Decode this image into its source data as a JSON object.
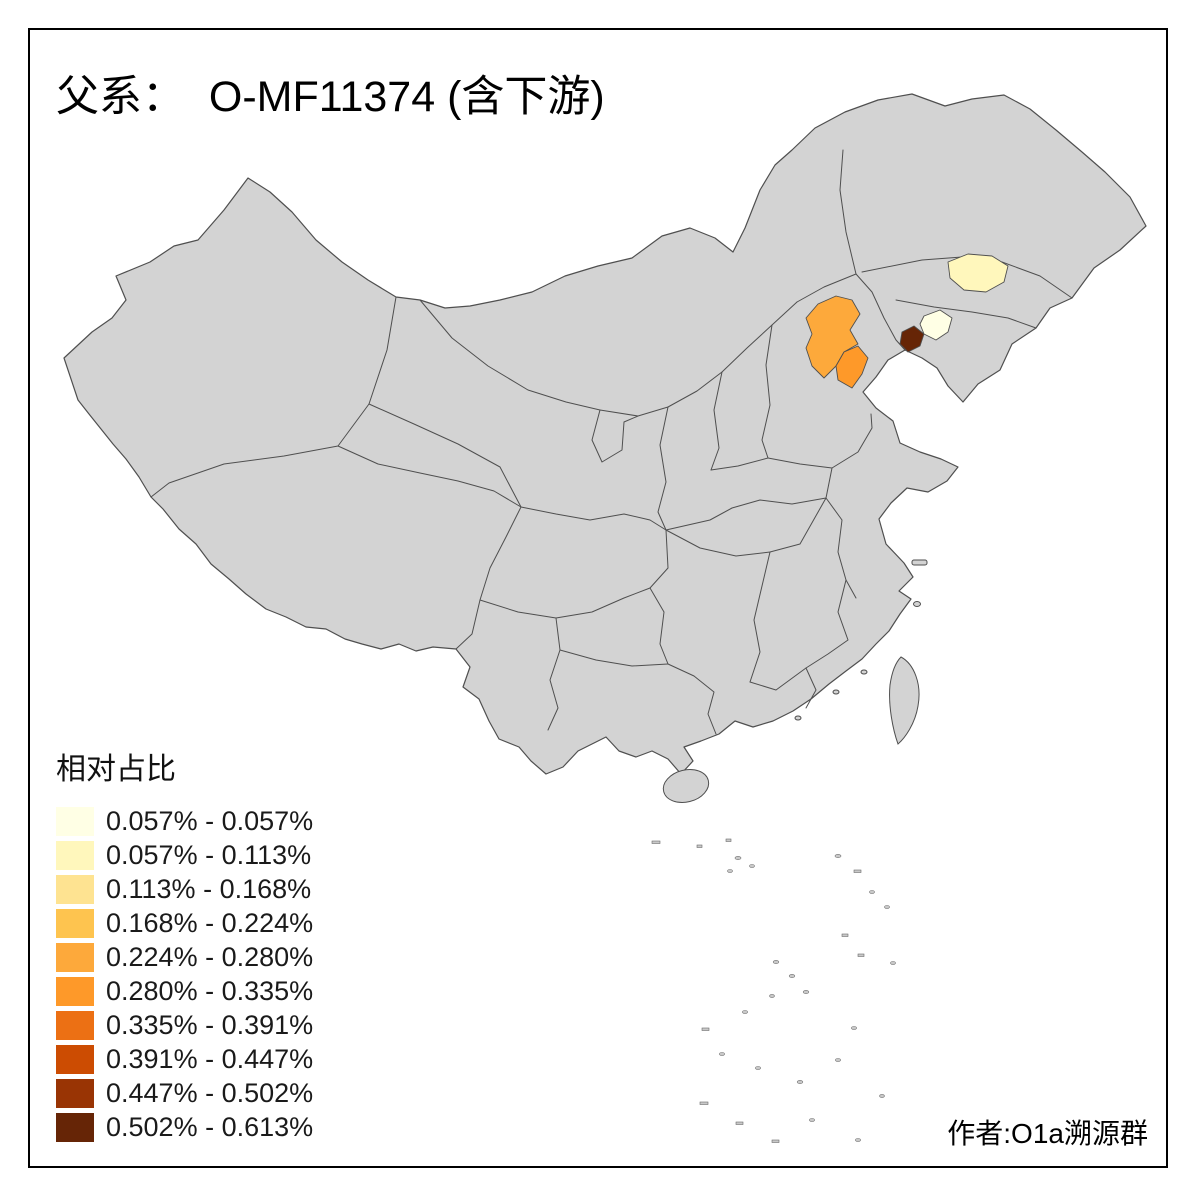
{
  "title": {
    "text": "父系：  O-MF11374 (含下游)"
  },
  "legend": {
    "title": "相对占比",
    "classes": [
      {
        "label": "0.057% - 0.057%",
        "color": "#FFFFE5"
      },
      {
        "label": "0.057% - 0.113%",
        "color": "#FFF7BC"
      },
      {
        "label": "0.113% - 0.168%",
        "color": "#FEE391"
      },
      {
        "label": "0.168% - 0.224%",
        "color": "#FEC44F"
      },
      {
        "label": "0.224% - 0.280%",
        "color": "#FDA93B"
      },
      {
        "label": "0.280% - 0.335%",
        "color": "#FE9929"
      },
      {
        "label": "0.335% - 0.391%",
        "color": "#EC7014"
      },
      {
        "label": "0.391% - 0.447%",
        "color": "#CC4C02"
      },
      {
        "label": "0.447% - 0.502%",
        "color": "#993404"
      },
      {
        "label": "0.502% - 0.613%",
        "color": "#662506"
      }
    ]
  },
  "map": {
    "land_color": "#D3D3D3",
    "border_color": "#4F4F4F",
    "background": "#FFFFFF",
    "highlighted_regions": [
      {
        "id": "region-hebei",
        "class_index": 4
      },
      {
        "id": "region-tianjin",
        "class_index": 5
      },
      {
        "id": "region-liaoning-coast",
        "class_index": 9
      },
      {
        "id": "region-liaoning-central",
        "class_index": 0
      },
      {
        "id": "region-jilin-central",
        "class_index": 1
      }
    ]
  },
  "credit": {
    "text": "作者:O1a溯源群"
  }
}
